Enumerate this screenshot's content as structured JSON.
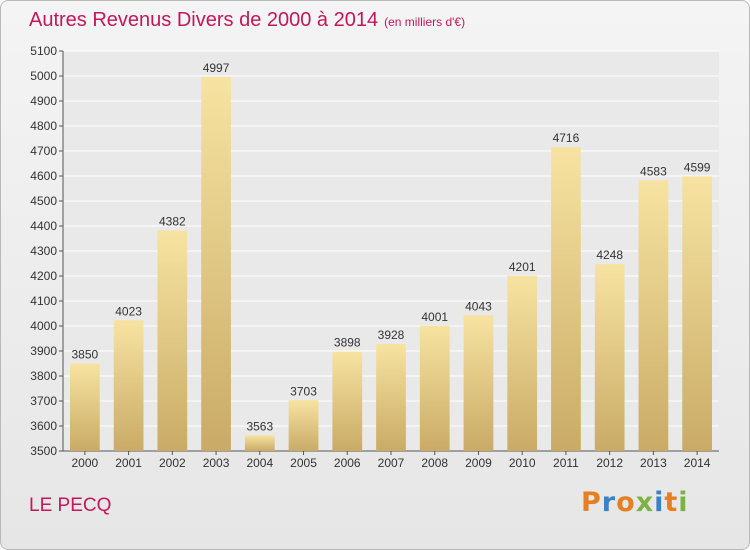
{
  "title": "Autres Revenus Divers de 2000 à 2014",
  "unit": "(en milliers d'€)",
  "city": "LE PECQ",
  "brand": "Proxiti",
  "colors": {
    "title": "#c2185b",
    "bar_light": "#f7e3a1",
    "bar_dark": "#c9ab66",
    "grid": "#ffffff",
    "brand_letters": [
      "#e67e22",
      "#3b82c4",
      "#e67e22",
      "#7cb342",
      "#3b82c4",
      "#e67e22",
      "#7cb342"
    ]
  },
  "chart_data": {
    "type": "bar",
    "title": "Autres Revenus Divers de 2000 à 2014",
    "subtitle": "(en milliers d'€)",
    "xlabel": "",
    "ylabel": "",
    "categories": [
      "2000",
      "2001",
      "2002",
      "2003",
      "2004",
      "2005",
      "2006",
      "2007",
      "2008",
      "2009",
      "2010",
      "2011",
      "2012",
      "2013",
      "2014"
    ],
    "values": [
      3850,
      4023,
      4382,
      4997,
      3563,
      3703,
      3898,
      3928,
      4001,
      4043,
      4201,
      4716,
      4248,
      4583,
      4599
    ],
    "ylim": [
      3500,
      5100
    ],
    "ytick_step": 100,
    "grid": true,
    "data_labels": true
  }
}
